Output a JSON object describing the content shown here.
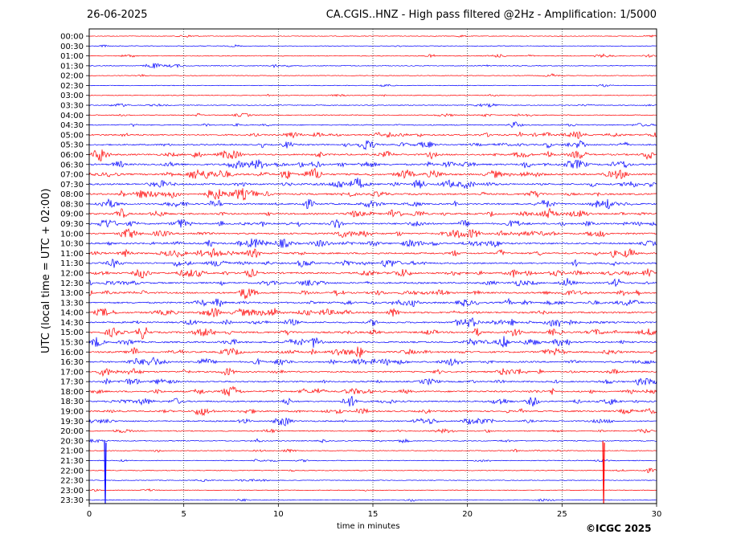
{
  "header": {
    "date": "26-06-2025",
    "title": "CA.CGIS..HNZ - High pass filtered @2Hz - Amplification: 1/5000"
  },
  "footer": {
    "copyright": "©ICGC 2025"
  },
  "colors": {
    "red": "#ff0000",
    "blue": "#0000ff"
  },
  "chart_data": {
    "type": "line",
    "xlabel": "time in minutes",
    "ylabel": "UTC (local time = UTC + 02:00)",
    "xlim": [
      0,
      30
    ],
    "xticks": [
      0,
      5,
      10,
      15,
      20,
      25,
      30
    ],
    "grid_x": [
      5,
      10,
      15,
      20,
      25
    ],
    "rows": [
      "00:00",
      "00:30",
      "01:00",
      "01:30",
      "02:00",
      "02:30",
      "03:00",
      "03:30",
      "04:00",
      "04:30",
      "05:00",
      "05:30",
      "06:00",
      "06:30",
      "07:00",
      "07:30",
      "08:00",
      "08:30",
      "09:00",
      "09:30",
      "10:00",
      "10:30",
      "11:00",
      "11:30",
      "12:00",
      "12:30",
      "13:00",
      "13:30",
      "14:00",
      "14:30",
      "15:00",
      "15:30",
      "16:00",
      "16:30",
      "17:00",
      "17:30",
      "18:00",
      "18:30",
      "19:00",
      "19:30",
      "20:00",
      "20:30",
      "21:00",
      "21:30",
      "22:00",
      "22:30",
      "23:00",
      "23:30"
    ],
    "row_colors": "alternating red (even rows) / blue (odd rows)",
    "activity": [
      0.1,
      0.1,
      0.2,
      0.2,
      0.1,
      0.1,
      0.15,
      0.2,
      0.25,
      0.35,
      0.6,
      0.6,
      0.75,
      0.8,
      0.85,
      0.8,
      0.75,
      0.7,
      0.7,
      0.75,
      0.75,
      0.75,
      0.75,
      0.75,
      0.8,
      0.7,
      0.75,
      0.75,
      0.8,
      0.7,
      0.8,
      0.75,
      0.75,
      0.7,
      0.6,
      0.6,
      0.7,
      0.65,
      0.65,
      0.55,
      0.35,
      0.25,
      0.2,
      0.2,
      0.15,
      0.1,
      0.1,
      0.1
    ],
    "spikes": [
      {
        "row": "21:00",
        "minute": 0.85,
        "color": "blue",
        "note": "large transient"
      },
      {
        "row": "21:00",
        "minute": 27.2,
        "color": "red",
        "note": "large transient"
      }
    ]
  }
}
